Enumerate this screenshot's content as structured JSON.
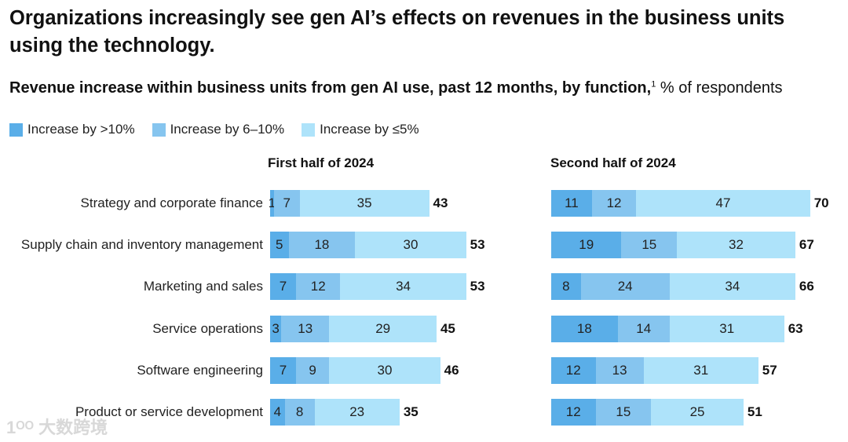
{
  "title": "Organizations increasingly see gen AI’s effects on revenues in the business units using the technology.",
  "subtitle": {
    "main": "Revenue increase within business units from gen AI use, past 12 months, by function,",
    "footnote": "1",
    "unit": " % of respondents"
  },
  "watermark": "大数跨境",
  "chart_data": {
    "type": "bar",
    "stacked": true,
    "orientation": "horizontal",
    "colors": [
      "#5aaee8",
      "#86c5ef",
      "#aee3fa"
    ],
    "legend": [
      "Increase by >10%",
      "Increase by 6–10%",
      "Increase by ≤5%"
    ],
    "categories": [
      "Strategy and corporate finance",
      "Supply chain and inventory management",
      "Marketing and sales",
      "Service operations",
      "Software engineering",
      "Product or service development"
    ],
    "panels": [
      {
        "title": "First half of 2024",
        "series": [
          {
            "name": "Increase by >10%",
            "values": [
              1,
              5,
              7,
              3,
              7,
              4
            ]
          },
          {
            "name": "Increase by 6–10%",
            "values": [
              7,
              18,
              12,
              13,
              9,
              8
            ]
          },
          {
            "name": "Increase by ≤5%",
            "values": [
              35,
              30,
              34,
              29,
              30,
              23
            ]
          }
        ],
        "totals": [
          43,
          53,
          53,
          45,
          46,
          35
        ]
      },
      {
        "title": "Second half of 2024",
        "series": [
          {
            "name": "Increase by >10%",
            "values": [
              11,
              19,
              8,
              18,
              12,
              12
            ]
          },
          {
            "name": "Increase by 6–10%",
            "values": [
              12,
              15,
              24,
              14,
              13,
              15
            ]
          },
          {
            "name": "Increase by ≤5%",
            "values": [
              47,
              32,
              34,
              31,
              31,
              25
            ]
          }
        ],
        "totals": [
          70,
          67,
          66,
          63,
          57,
          51
        ]
      }
    ]
  }
}
